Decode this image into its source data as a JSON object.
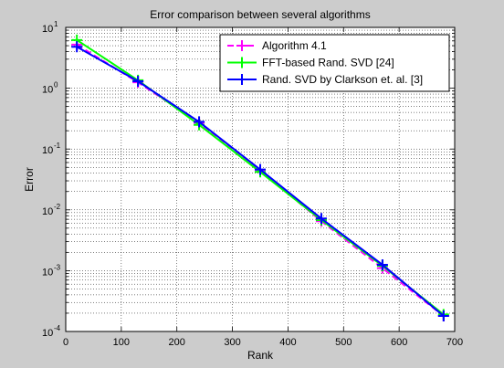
{
  "chart_data": {
    "type": "line",
    "title": "Error comparison between several algorithms",
    "xlabel": "Rank",
    "ylabel": "Error",
    "xlim": [
      0,
      700
    ],
    "ylim": [
      0.0001,
      10
    ],
    "yscale": "log",
    "grid": "dotted minor grid on y (log decades), major on x",
    "legend_position": "top-right",
    "x_ticks": [
      "0",
      "100",
      "200",
      "300",
      "400",
      "500",
      "600",
      "700"
    ],
    "y_ticks": [
      {
        "base": "10",
        "exp": "-4"
      },
      {
        "base": "10",
        "exp": "-3"
      },
      {
        "base": "10",
        "exp": "-2"
      },
      {
        "base": "10",
        "exp": "-1"
      },
      {
        "base": "10",
        "exp": "0"
      },
      {
        "base": "10",
        "exp": "1"
      }
    ],
    "series": [
      {
        "name": "Algorithm 4.1",
        "color": "#ff00ff",
        "dash": "dashed",
        "marker": "plus",
        "x": [
          20,
          130,
          240,
          350,
          460,
          570,
          680
        ],
        "y": [
          5.2,
          1.25,
          0.27,
          0.045,
          0.0065,
          0.0011,
          0.00018
        ]
      },
      {
        "name": "FFT-based Rand. SVD [24]",
        "color": "#00ff00",
        "dash": "solid",
        "marker": "plus",
        "x": [
          20,
          130,
          240,
          350,
          460,
          570,
          680
        ],
        "y": [
          6.2,
          1.35,
          0.25,
          0.042,
          0.0068,
          0.0012,
          0.00019
        ]
      },
      {
        "name": "Rand. SVD by Clarkson et. al. [3]",
        "color": "#0000ff",
        "dash": "solid",
        "marker": "plus",
        "x": [
          20,
          130,
          240,
          350,
          460,
          570,
          680
        ],
        "y": [
          4.8,
          1.3,
          0.28,
          0.046,
          0.0072,
          0.00125,
          0.00018
        ]
      }
    ]
  }
}
